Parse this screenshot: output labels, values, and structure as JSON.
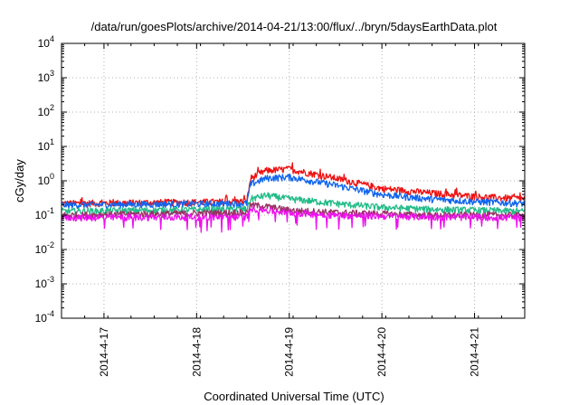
{
  "chart_data": {
    "type": "line",
    "title": "/data/run/goesPlots/archive/2014-04-21/13:00/flux/../bryn/5daysEarthData.plot",
    "xlabel": "Coordinated Universal Time (UTC)",
    "ylabel": "cGy/day",
    "y_scale": "log",
    "ylim": [
      0.0001,
      10000
    ],
    "y_ticks": [
      {
        "base": "10",
        "exp": "-4",
        "value": 0.0001
      },
      {
        "base": "10",
        "exp": "-3",
        "value": 0.001
      },
      {
        "base": "10",
        "exp": "-2",
        "value": 0.01
      },
      {
        "base": "10",
        "exp": "-1",
        "value": 0.1
      },
      {
        "base": "10",
        "exp": "0",
        "value": 1
      },
      {
        "base": "10",
        "exp": "1",
        "value": 10
      },
      {
        "base": "10",
        "exp": "2",
        "value": 100
      },
      {
        "base": "10",
        "exp": "3",
        "value": 1000
      },
      {
        "base": "10",
        "exp": "4",
        "value": 10000
      }
    ],
    "xlim": [
      "2014-04-16 13:00",
      "2014-04-21 13:00"
    ],
    "x_ticks": [
      "2014-4-17",
      "2014-4-18",
      "2014-4-19",
      "2014-4-20",
      "2014-4-21"
    ],
    "grid": true,
    "legend": "none",
    "x": [
      "2014-04-16 13:00",
      "2014-04-18 13:00",
      "2014-04-18 14:00",
      "2014-04-18 18:00",
      "2014-04-19 00:00",
      "2014-04-19 12:00",
      "2014-04-20 00:00",
      "2014-04-20 12:00",
      "2014-04-21 00:00",
      "2014-04-21 13:00"
    ],
    "series": [
      {
        "color": "#ee1111",
        "values": [
          0.22,
          0.25,
          1.2,
          2.0,
          2.2,
          1.2,
          0.6,
          0.45,
          0.35,
          0.3
        ]
      },
      {
        "color": "#1166ee",
        "values": [
          0.2,
          0.22,
          0.8,
          1.2,
          1.3,
          0.75,
          0.4,
          0.3,
          0.25,
          0.22
        ]
      },
      {
        "color": "#22bb88",
        "values": [
          0.13,
          0.15,
          0.3,
          0.38,
          0.3,
          0.22,
          0.17,
          0.15,
          0.14,
          0.13
        ]
      },
      {
        "color": "#993366",
        "values": [
          0.1,
          0.12,
          0.2,
          0.18,
          0.14,
          0.12,
          0.11,
          0.1,
          0.1,
          0.1
        ]
      },
      {
        "color": "#ee11ee",
        "values": [
          0.085,
          0.09,
          0.16,
          0.14,
          0.12,
          0.1,
          0.095,
          0.09,
          0.088,
          0.085
        ]
      }
    ]
  }
}
